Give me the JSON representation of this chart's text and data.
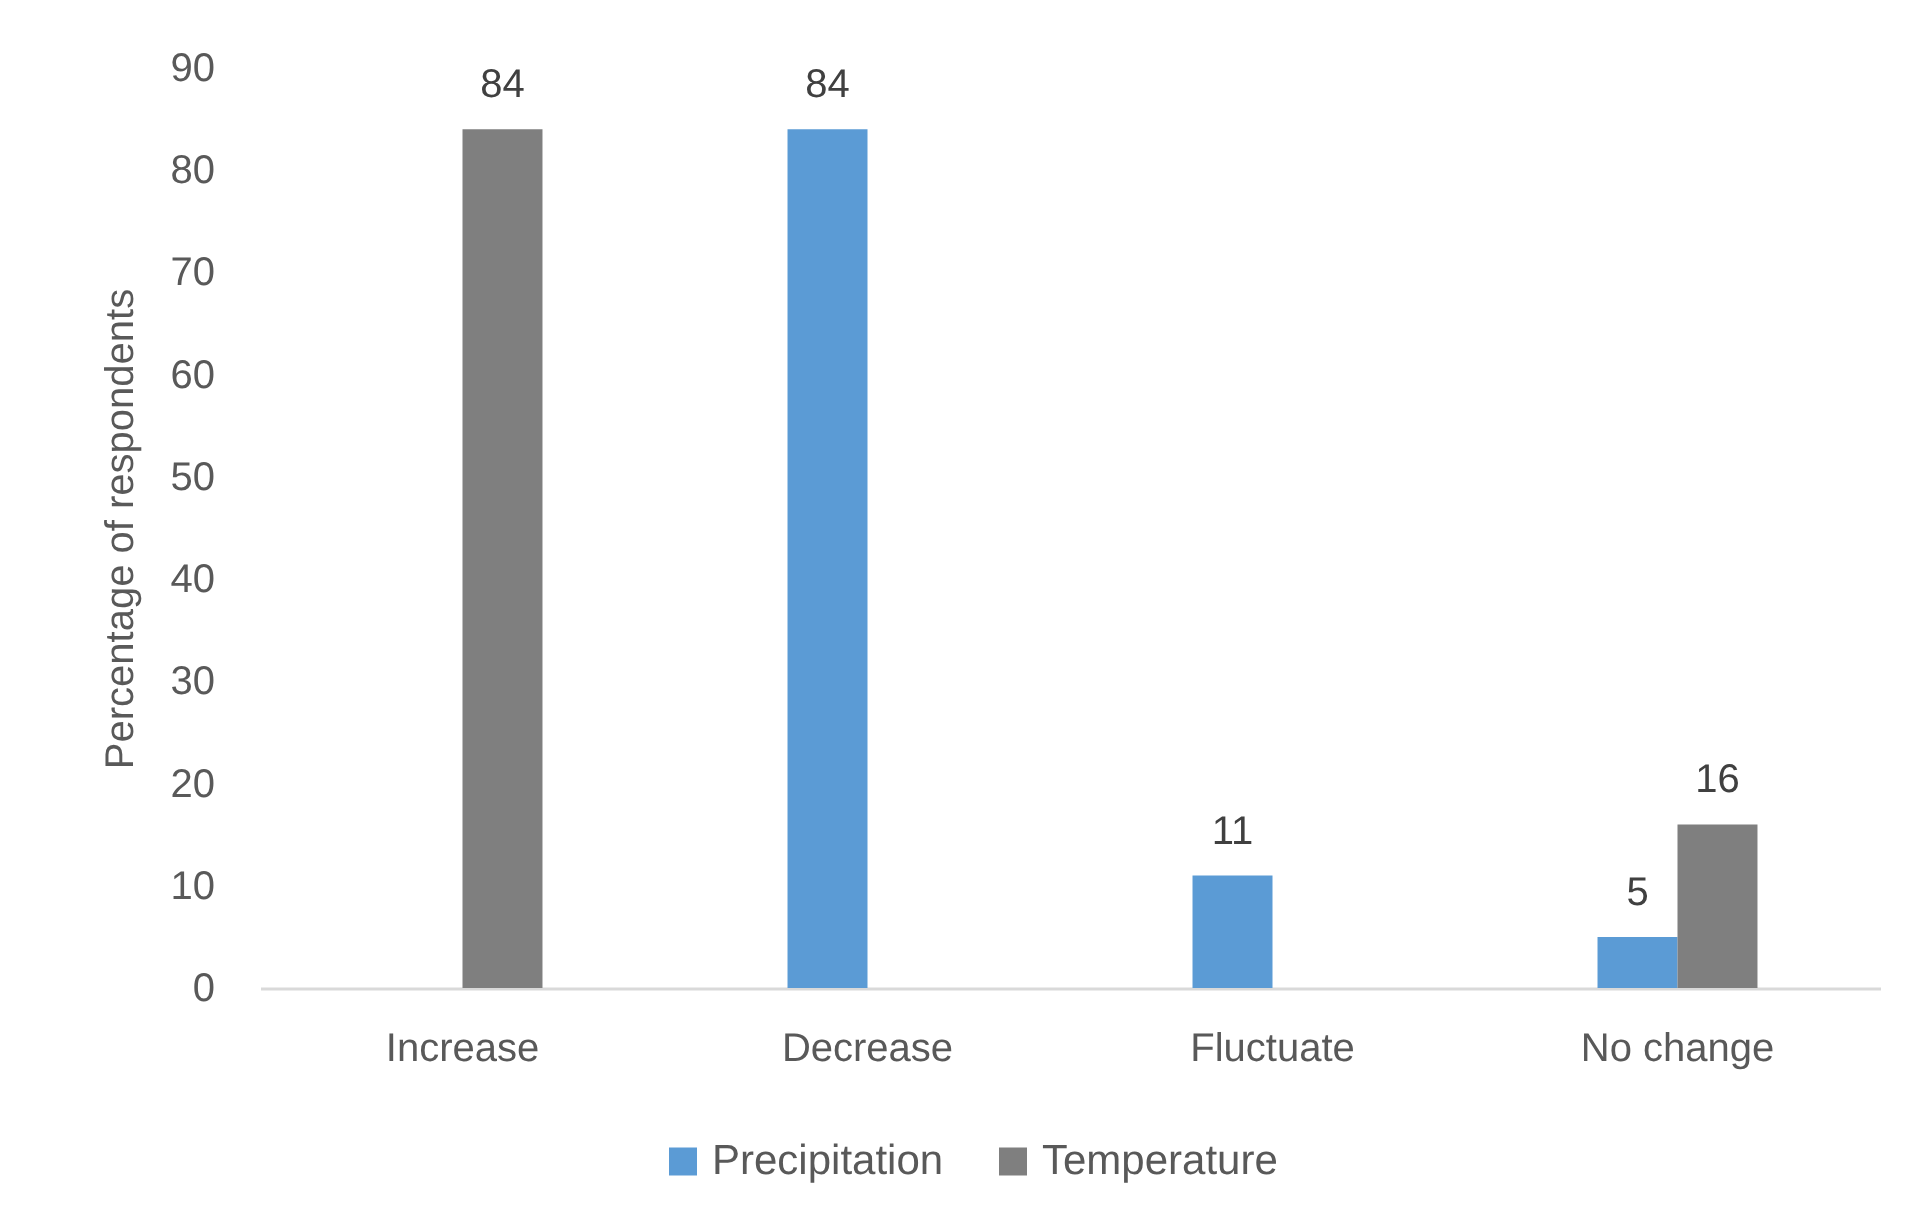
{
  "chart_data": {
    "type": "bar",
    "ylabel": "Percentage of respondents",
    "categories": [
      "Increase",
      "Decrease",
      "Fluctuate",
      "No change"
    ],
    "series": [
      {
        "name": "Precipitation",
        "color": "#5b9bd5",
        "values": [
          null,
          84,
          11,
          5
        ]
      },
      {
        "name": "Temperature",
        "color": "#7f7f7f",
        "values": [
          84,
          null,
          null,
          16
        ]
      }
    ],
    "ylim": [
      0,
      90
    ],
    "yticks": [
      0,
      10,
      20,
      30,
      40,
      50,
      60,
      70,
      80,
      90
    ],
    "grid": false,
    "legend": "bottom",
    "data_labels": true
  }
}
